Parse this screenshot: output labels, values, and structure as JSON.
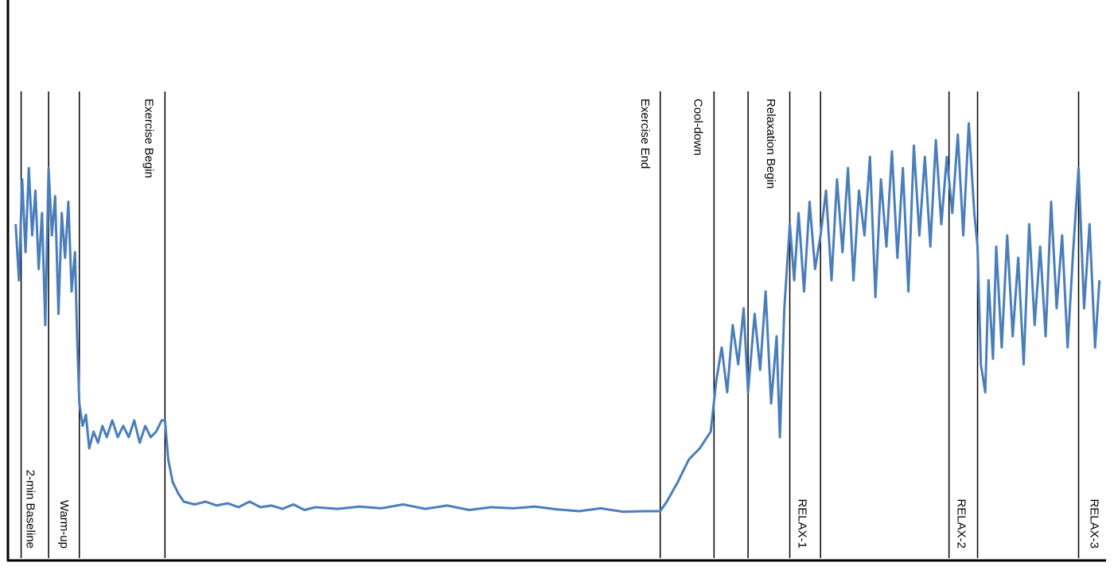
{
  "chart_data": {
    "type": "line",
    "xlim": [
      0,
      100
    ],
    "ylim": [
      0,
      100
    ],
    "x": [
      0.7,
      1.0,
      1.3,
      1.6,
      1.9,
      2.2,
      2.5,
      2.8,
      3.1,
      3.4,
      3.7,
      4.0,
      4.3,
      4.6,
      4.9,
      5.2,
      5.5,
      5.8,
      6.1,
      6.3,
      6.5,
      6.8,
      7.1,
      7.4,
      7.8,
      8.2,
      8.6,
      9.0,
      9.5,
      10,
      10.5,
      11,
      11.5,
      12,
      12.5,
      13,
      13.5,
      14,
      14.3,
      14.6,
      15,
      15.5,
      16,
      17,
      18,
      19,
      20,
      21,
      22,
      23,
      24,
      25,
      26,
      27,
      28,
      30,
      32,
      34,
      36,
      38,
      40,
      42,
      44,
      46,
      48,
      50,
      52,
      54,
      56,
      58,
      59.4,
      60,
      61,
      62,
      63,
      64,
      64.5,
      65,
      65.5,
      66,
      66.5,
      67,
      67.4,
      68,
      68.5,
      69,
      69.5,
      70,
      70.3,
      70.7,
      71.2,
      71.6,
      72,
      72.5,
      73,
      73.5,
      74,
      74.5,
      75,
      75.5,
      76,
      76.5,
      77,
      77.5,
      78,
      78.5,
      79,
      79.5,
      80,
      80.5,
      81,
      81.5,
      82,
      82.5,
      83,
      83.5,
      84,
      84.5,
      85,
      85.5,
      86,
      86.5,
      87,
      87.5,
      88,
      88.3,
      88.6,
      89,
      89.3,
      89.7,
      90,
      90.5,
      91,
      91.5,
      92,
      92.5,
      93,
      93.5,
      94,
      94.5,
      95,
      95.5,
      96,
      96.5,
      97,
      97.5,
      98,
      98.5,
      99,
      99.4
    ],
    "series": [
      {
        "color": "#4a7ebb",
        "values": [
          60,
          50,
          68,
          55,
          70,
          58,
          66,
          52,
          62,
          42,
          70,
          58,
          65,
          44,
          62,
          54,
          64,
          48,
          55,
          40,
          28,
          24,
          26,
          20,
          23,
          21,
          24,
          22,
          25,
          22,
          24,
          22,
          25,
          21,
          24,
          22,
          23,
          25,
          25,
          18,
          14,
          12,
          10.5,
          10,
          10.5,
          9.8,
          10.2,
          9.5,
          10.5,
          9.5,
          9.8,
          9.2,
          10,
          9,
          9.5,
          9.2,
          9.6,
          9.3,
          10,
          9.2,
          9.8,
          9,
          9.5,
          9.3,
          9.6,
          9.1,
          8.8,
          9.3,
          8.7,
          8.8,
          8.8,
          10.5,
          14,
          18,
          20,
          23,
          32,
          38,
          30,
          42,
          35,
          45,
          30,
          44,
          34,
          48,
          28,
          40,
          22,
          45,
          60,
          50,
          62,
          48,
          64,
          52,
          58,
          66,
          50,
          68,
          55,
          70,
          50,
          66,
          58,
          72,
          47,
          68,
          56,
          73,
          54,
          70,
          48,
          74,
          58,
          72,
          56,
          75,
          60,
          72,
          62,
          76,
          58,
          78,
          62,
          56,
          35,
          30,
          50,
          36,
          56,
          38,
          58,
          40,
          54,
          35,
          60,
          42,
          56,
          40,
          64,
          45,
          58,
          38,
          55,
          70,
          45,
          60,
          38,
          50
        ]
      }
    ],
    "events": {
      "x": [
        1.2,
        3.7,
        6.5,
        14.3,
        59.4,
        64.3,
        67.4,
        71.2,
        74.0,
        85.7,
        88.3,
        97.5
      ],
      "labels": [
        "2-min Baseline",
        "Warm-up",
        null,
        "Exercise Begin",
        "Exercise End",
        "Cool-down",
        "Relaxation  Begin",
        "RELAX-1",
        null,
        "RELAX-2",
        null,
        "RELAX-3"
      ]
    }
  }
}
